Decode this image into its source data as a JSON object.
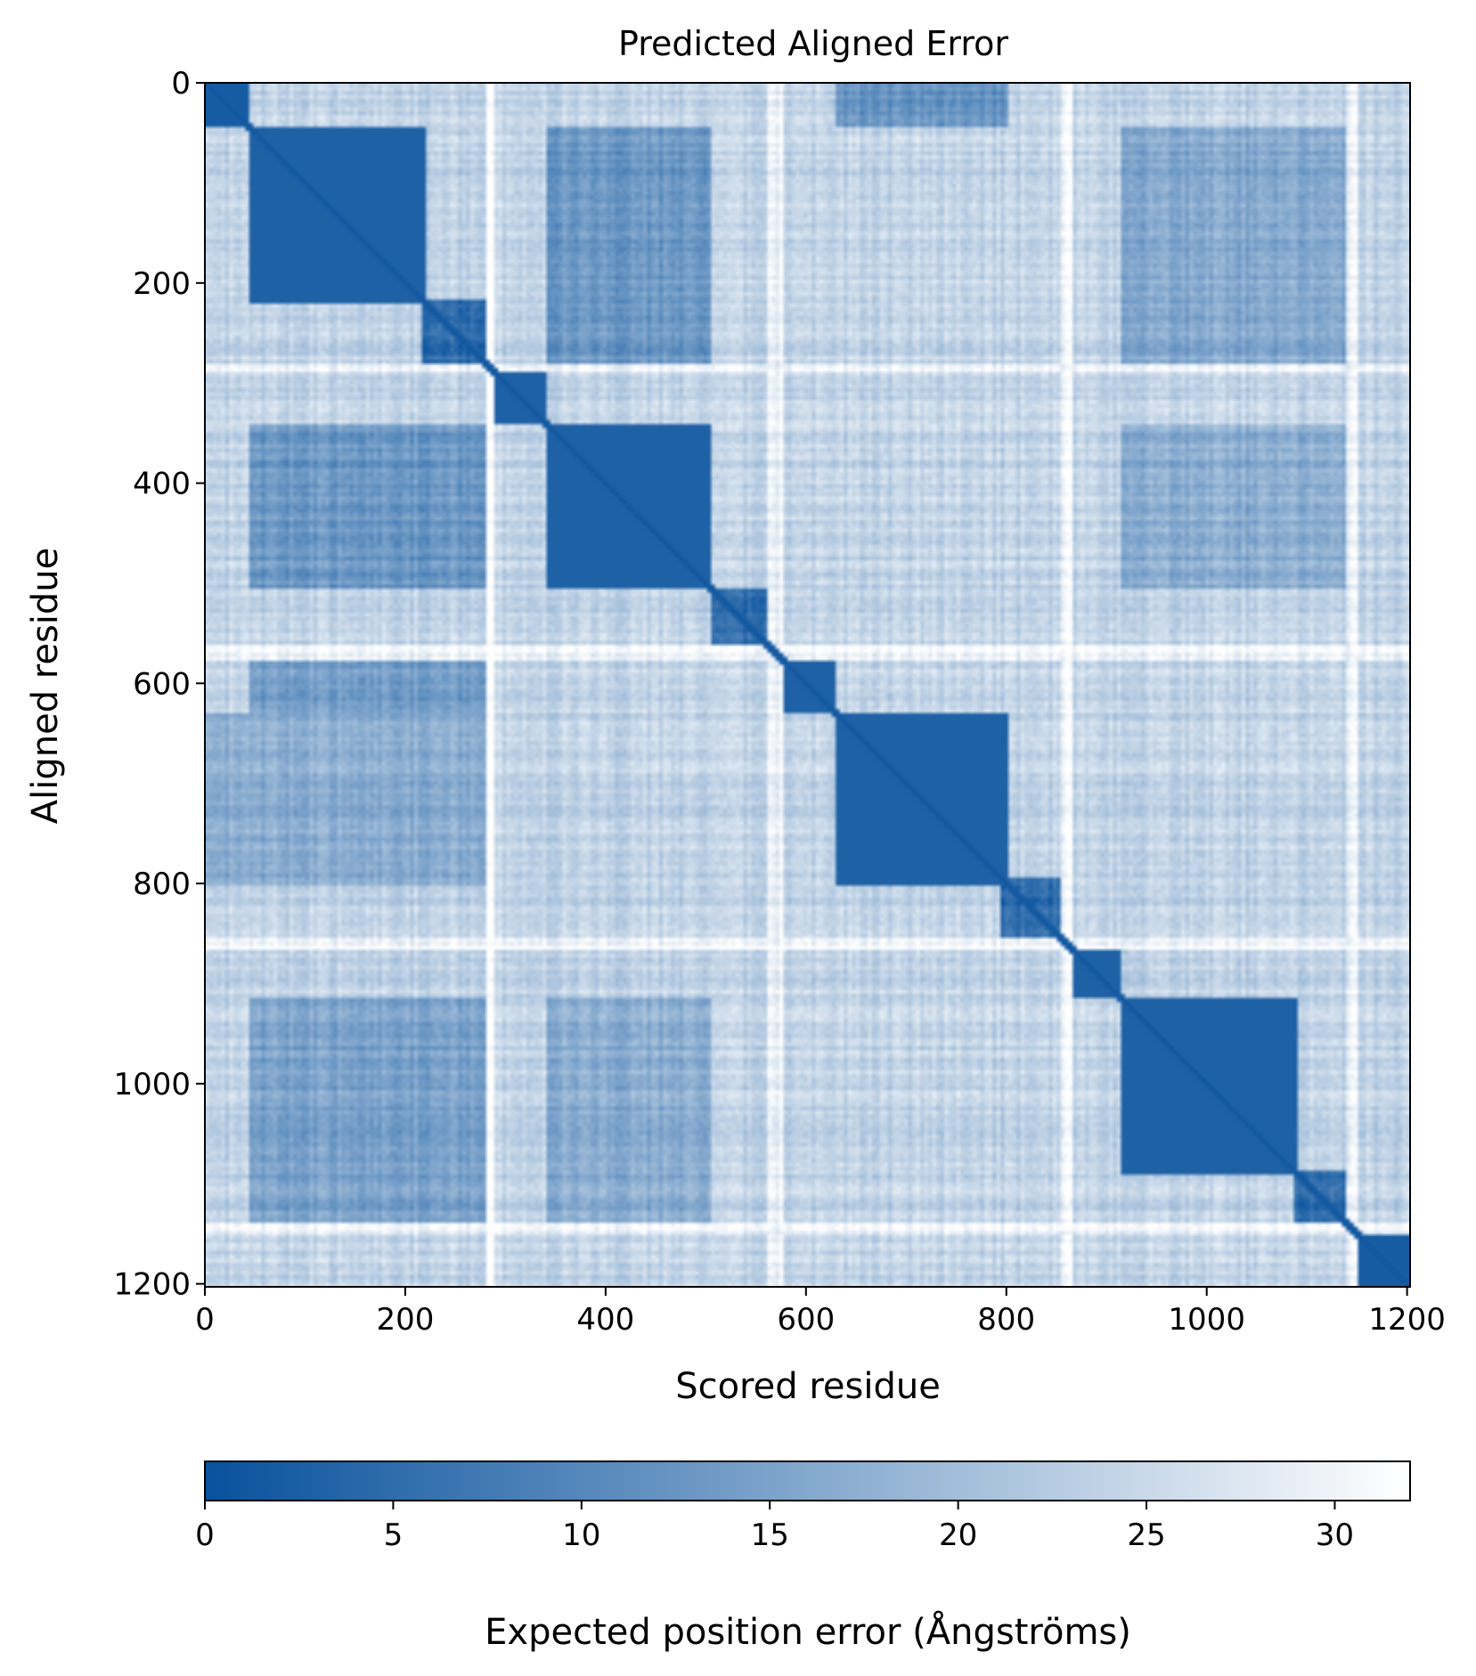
{
  "chart_data": {
    "type": "heatmap",
    "title": "Predicted Aligned Error",
    "xlabel": "Scored residue",
    "ylabel": "Aligned residue",
    "n_residues": 1203,
    "xlim": [
      0,
      1203
    ],
    "ylim": [
      1203,
      0
    ],
    "xticks": [
      0,
      200,
      400,
      600,
      800,
      1000,
      1200
    ],
    "yticks": [
      0,
      200,
      400,
      600,
      800,
      1000,
      1200
    ],
    "colorbar": {
      "label": "Expected position error (Ångströms)",
      "range": [
        0,
        32
      ],
      "ticks": [
        0,
        5,
        10,
        15,
        20,
        25,
        30
      ],
      "colors": [
        "#08519c",
        "#ffffff"
      ]
    },
    "baseline_error": 24,
    "diagonal_error": 1,
    "domain_blocks": [
      {
        "start": 0,
        "end": 45,
        "error": 2
      },
      {
        "start": 45,
        "end": 220,
        "error": 3
      },
      {
        "start": 215,
        "end": 280,
        "error": 5
      },
      {
        "start": 288,
        "end": 340,
        "error": 3
      },
      {
        "start": 340,
        "end": 505,
        "error": 3
      },
      {
        "start": 505,
        "end": 560,
        "error": 5
      },
      {
        "start": 578,
        "end": 630,
        "error": 3
      },
      {
        "start": 630,
        "end": 800,
        "error": 3
      },
      {
        "start": 795,
        "end": 855,
        "error": 5
      },
      {
        "start": 865,
        "end": 915,
        "error": 3
      },
      {
        "start": 915,
        "end": 1090,
        "error": 3
      },
      {
        "start": 1085,
        "end": 1140,
        "error": 5
      },
      {
        "start": 1150,
        "end": 1203,
        "error": 2
      }
    ],
    "block_interactions": [
      {
        "rows": [
          45,
          280
        ],
        "cols": [
          340,
          505
        ],
        "error": 13
      },
      {
        "rows": [
          340,
          505
        ],
        "cols": [
          45,
          280
        ],
        "error": 13
      },
      {
        "rows": [
          45,
          280
        ],
        "cols": [
          915,
          1140
        ],
        "error": 16
      },
      {
        "rows": [
          915,
          1140
        ],
        "cols": [
          45,
          280
        ],
        "error": 15
      },
      {
        "rows": [
          340,
          505
        ],
        "cols": [
          915,
          1140
        ],
        "error": 17
      },
      {
        "rows": [
          915,
          1140
        ],
        "cols": [
          340,
          505
        ],
        "error": 17
      },
      {
        "rows": [
          630,
          800
        ],
        "cols": [
          0,
          280
        ],
        "error": 17
      },
      {
        "rows": [
          0,
          45
        ],
        "cols": [
          630,
          800
        ],
        "error": 12
      },
      {
        "rows": [
          578,
          630
        ],
        "cols": [
          45,
          280
        ],
        "error": 14
      }
    ],
    "low_confidence_bands": [
      {
        "start": 280,
        "end": 288,
        "error": 31
      },
      {
        "start": 560,
        "end": 578,
        "error": 30
      },
      {
        "start": 855,
        "end": 865,
        "error": 31
      },
      {
        "start": 1140,
        "end": 1150,
        "error": 30
      }
    ]
  }
}
